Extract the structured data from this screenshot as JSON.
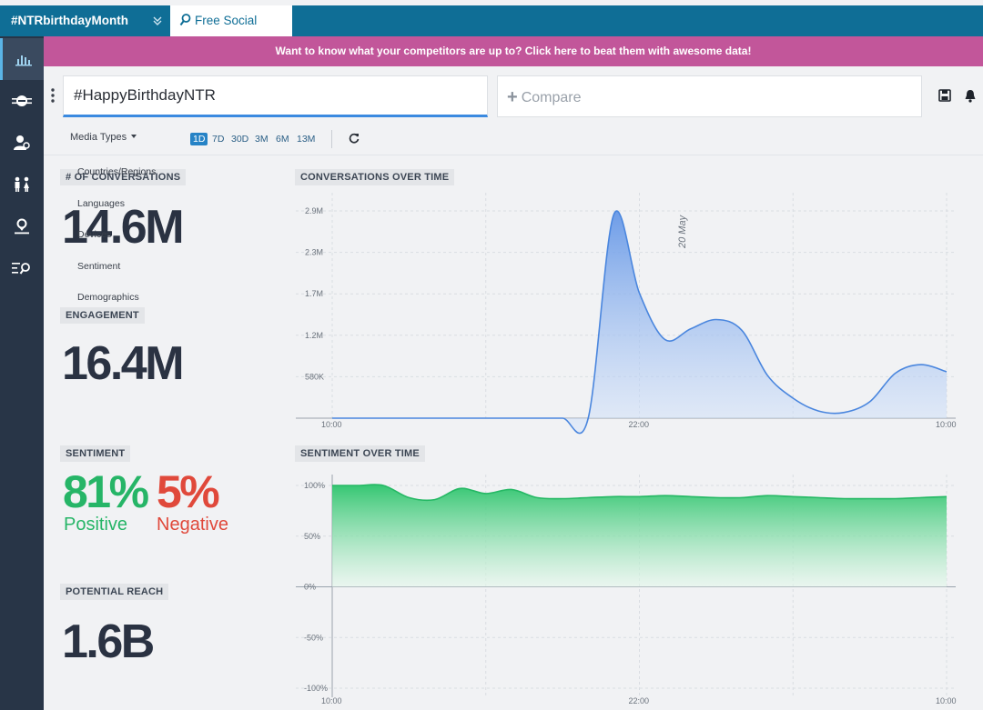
{
  "tabs": {
    "active_label": "#NTRbirthdayMonth",
    "search_label": "Free Social Search"
  },
  "banner": {
    "text": "Want to know what your competitors are up to? Click here to beat them with awesome data!"
  },
  "query": {
    "value": "#HappyBirthdayNTR"
  },
  "compare": {
    "placeholder": "Compare"
  },
  "filters": {
    "media_types_label": "Media Types",
    "ranges": [
      "1D",
      "7D",
      "30D",
      "3M",
      "6M",
      "13M"
    ],
    "active_range": "1D"
  },
  "menu": {
    "items": [
      "Countries/Regions",
      "Languages",
      "Devices",
      "Sentiment",
      "Demographics"
    ]
  },
  "stats": {
    "conversations_label": "# OF CONVERSATIONS",
    "conversations_value": "14.6M",
    "engagement_label": "ENGAGEMENT",
    "engagement_value": "16.4M",
    "sentiment_label": "SENTIMENT",
    "positive_value": "81%",
    "positive_label": "Positive",
    "negative_value": "5%",
    "negative_label": "Negative",
    "reach_label": "POTENTIAL REACH",
    "reach_value": "1.6B"
  },
  "colors": {
    "positive": "#26b567",
    "negative": "#e0493b",
    "accent": "#3b8ae0",
    "banner": "#c2569a",
    "topbar": "#0f6e96"
  },
  "chart_data": [
    {
      "type": "area",
      "title": "CONVERSATIONS OVER TIME",
      "x_ticks": [
        "10:00",
        "22:00",
        "10:00"
      ],
      "y_ticks": [
        "580K",
        "1.2M",
        "1.7M",
        "2.3M",
        "2.9M"
      ],
      "ylim": [
        0,
        2900000
      ],
      "annotation": "20 May",
      "series": [
        {
          "x": [
            0,
            1,
            2,
            3,
            4,
            5,
            6,
            7,
            8,
            9,
            10,
            11,
            12,
            13,
            14,
            15,
            16,
            17,
            18,
            19,
            20,
            21,
            22,
            23,
            24
          ],
          "values": [
            0,
            0,
            0,
            0,
            0,
            0,
            0,
            0,
            0,
            0,
            0,
            2850000,
            1750000,
            1100000,
            1250000,
            1380000,
            1230000,
            600000,
            280000,
            100000,
            80000,
            230000,
            630000,
            750000,
            650000
          ]
        }
      ]
    },
    {
      "type": "area",
      "title": "SENTIMENT OVER TIME",
      "x_ticks": [
        "10:00",
        "22:00",
        "10:00"
      ],
      "y_ticks": [
        "100%",
        "50%",
        "0%",
        "-50%",
        "-100%"
      ],
      "ylim": [
        -100,
        100
      ],
      "series": [
        {
          "x": [
            0,
            1,
            2,
            3,
            4,
            5,
            6,
            7,
            8,
            9,
            10,
            11,
            12,
            13,
            14,
            15,
            16,
            17,
            18,
            19,
            20,
            21,
            22,
            23,
            24
          ],
          "values": [
            100,
            100,
            100,
            88,
            86,
            97,
            92,
            96,
            88,
            87,
            88,
            89,
            89,
            90,
            89,
            88,
            88,
            90,
            89,
            88,
            87,
            87,
            87,
            88,
            89
          ]
        }
      ]
    }
  ]
}
